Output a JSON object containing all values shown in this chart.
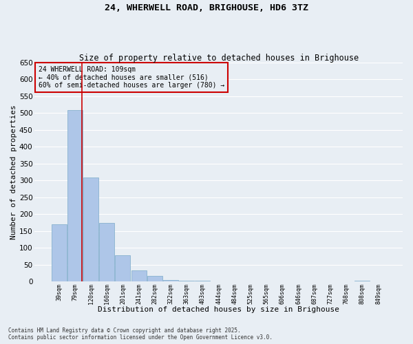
{
  "title1": "24, WHERWELL ROAD, BRIGHOUSE, HD6 3TZ",
  "title2": "Size of property relative to detached houses in Brighouse",
  "xlabel": "Distribution of detached houses by size in Brighouse",
  "ylabel": "Number of detached properties",
  "categories": [
    "39sqm",
    "79sqm",
    "120sqm",
    "160sqm",
    "201sqm",
    "241sqm",
    "282sqm",
    "322sqm",
    "363sqm",
    "403sqm",
    "444sqm",
    "484sqm",
    "525sqm",
    "565sqm",
    "606sqm",
    "646sqm",
    "687sqm",
    "727sqm",
    "768sqm",
    "808sqm",
    "849sqm"
  ],
  "values": [
    170,
    510,
    310,
    175,
    78,
    33,
    18,
    5,
    2,
    2,
    0,
    0,
    0,
    0,
    0,
    0,
    0,
    0,
    0,
    3,
    0
  ],
  "bar_color": "#aec6e8",
  "bar_edge_color": "#7aaac8",
  "background_color": "#e8eef4",
  "grid_color": "#ffffff",
  "annotation_line1": "24 WHERWELL ROAD: 109sqm",
  "annotation_line2": "← 40% of detached houses are smaller (516)",
  "annotation_line3": "60% of semi-detached houses are larger (780) →",
  "annotation_box_color": "#cc0000",
  "red_line_bin": 1,
  "ylim": [
    0,
    650
  ],
  "yticks": [
    0,
    50,
    100,
    150,
    200,
    250,
    300,
    350,
    400,
    450,
    500,
    550,
    600,
    650
  ],
  "footer_line1": "Contains HM Land Registry data © Crown copyright and database right 2025.",
  "footer_line2": "Contains public sector information licensed under the Open Government Licence v3.0."
}
